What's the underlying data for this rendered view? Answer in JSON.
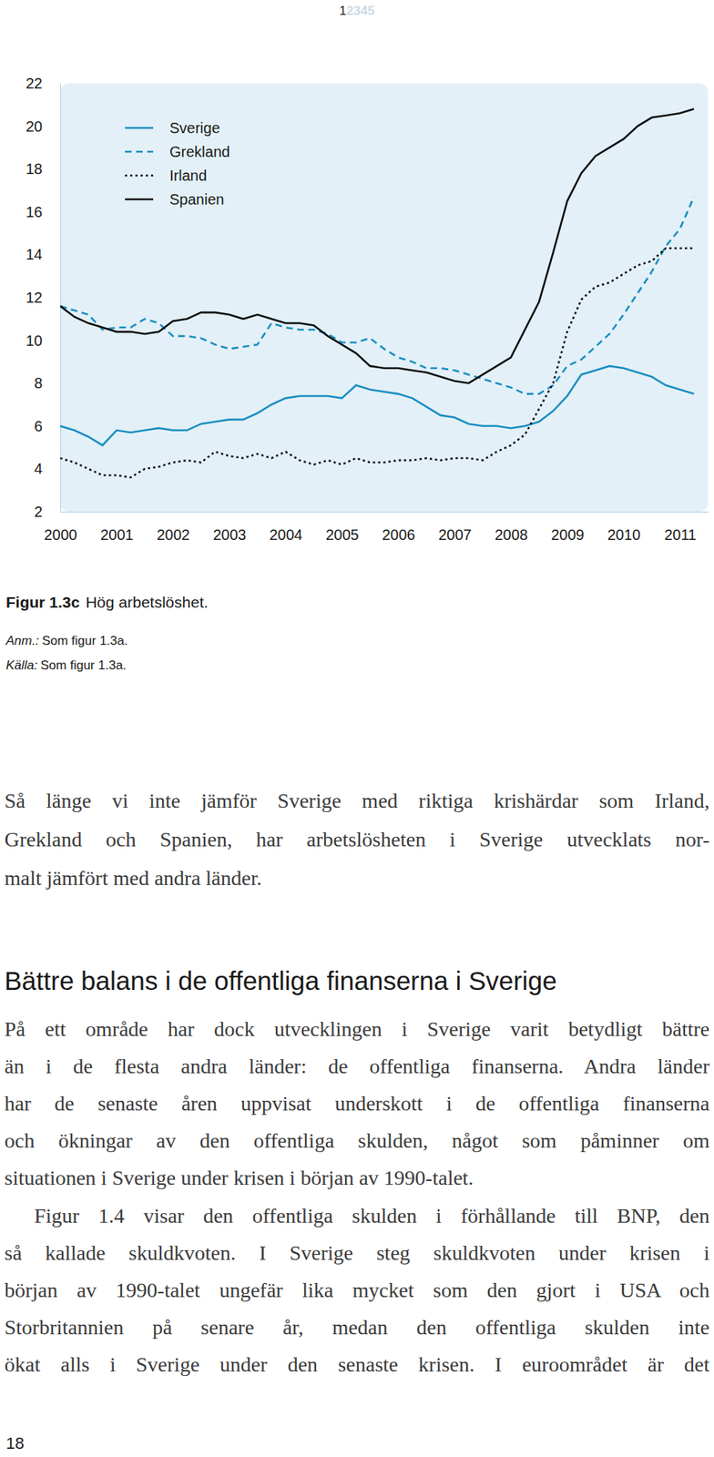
{
  "header": {
    "pages": [
      "1",
      "2",
      "3",
      "4",
      "5"
    ]
  },
  "chart_data": {
    "type": "line",
    "x": [
      2000,
      2000.25,
      2000.5,
      2000.75,
      2001,
      2001.25,
      2001.5,
      2001.75,
      2002,
      2002.25,
      2002.5,
      2002.75,
      2003,
      2003.25,
      2003.5,
      2003.75,
      2004,
      2004.25,
      2004.5,
      2004.75,
      2005,
      2005.25,
      2005.5,
      2005.75,
      2006,
      2006.25,
      2006.5,
      2006.75,
      2007,
      2007.25,
      2007.5,
      2007.75,
      2008,
      2008.25,
      2008.5,
      2008.75,
      2009,
      2009.25,
      2009.5,
      2009.75,
      2010,
      2010.25,
      2010.5,
      2010.75,
      2011,
      2011.25
    ],
    "xlim": [
      2000,
      2011.5
    ],
    "xticks": [
      2000,
      2001,
      2002,
      2003,
      2004,
      2005,
      2006,
      2007,
      2008,
      2009,
      2010,
      2011
    ],
    "ylim": [
      2,
      22
    ],
    "yticks": [
      2,
      4,
      6,
      8,
      10,
      12,
      14,
      16,
      18,
      20,
      22
    ],
    "grid": false,
    "legend": "upper left",
    "series": [
      {
        "name": "Sverige",
        "color": "#1b8ec2",
        "line_style": "solid",
        "values": [
          6.0,
          5.8,
          5.5,
          5.1,
          5.8,
          5.7,
          5.8,
          5.9,
          5.8,
          5.8,
          6.1,
          6.2,
          6.3,
          6.3,
          6.6,
          7.0,
          7.3,
          7.4,
          7.4,
          7.4,
          7.3,
          7.9,
          7.7,
          7.6,
          7.5,
          7.3,
          6.9,
          6.5,
          6.4,
          6.1,
          6.0,
          6.0,
          5.9,
          6.0,
          6.2,
          6.7,
          7.4,
          8.4,
          8.6,
          8.8,
          8.7,
          8.5,
          8.3,
          7.9,
          7.7,
          7.5
        ]
      },
      {
        "name": "Grekland",
        "color": "#1b8ec2",
        "line_style": "dashed",
        "values": [
          11.6,
          11.4,
          11.2,
          10.5,
          10.6,
          10.6,
          11.0,
          10.8,
          10.2,
          10.2,
          10.1,
          9.8,
          9.6,
          9.7,
          9.8,
          10.8,
          10.6,
          10.5,
          10.5,
          10.3,
          9.9,
          9.9,
          10.1,
          9.6,
          9.2,
          9.0,
          8.7,
          8.7,
          8.6,
          8.4,
          8.2,
          8.0,
          7.8,
          7.5,
          7.5,
          7.9,
          8.8,
          9.1,
          9.7,
          10.3,
          11.2,
          12.2,
          13.2,
          14.4,
          15.2,
          16.7
        ]
      },
      {
        "name": "Irland",
        "color": "#111111",
        "line_style": "dotted",
        "values": [
          4.5,
          4.3,
          4.0,
          3.7,
          3.7,
          3.6,
          4.0,
          4.1,
          4.3,
          4.4,
          4.3,
          4.8,
          4.6,
          4.5,
          4.7,
          4.5,
          4.8,
          4.4,
          4.2,
          4.4,
          4.2,
          4.5,
          4.3,
          4.3,
          4.4,
          4.4,
          4.5,
          4.4,
          4.5,
          4.5,
          4.4,
          4.8,
          5.1,
          5.6,
          6.8,
          8.0,
          10.4,
          11.9,
          12.5,
          12.7,
          13.1,
          13.5,
          13.7,
          14.3,
          14.3,
          14.3
        ]
      },
      {
        "name": "Spanien",
        "color": "#111111",
        "line_style": "solid",
        "values": [
          11.6,
          11.1,
          10.8,
          10.6,
          10.4,
          10.4,
          10.3,
          10.4,
          10.9,
          11.0,
          11.3,
          11.3,
          11.2,
          11.0,
          11.2,
          11.0,
          10.8,
          10.8,
          10.7,
          10.2,
          9.8,
          9.4,
          8.8,
          8.7,
          8.7,
          8.6,
          8.5,
          8.3,
          8.1,
          8.0,
          8.4,
          8.8,
          9.2,
          10.5,
          11.8,
          14.1,
          16.5,
          17.8,
          18.6,
          19.0,
          19.4,
          20.0,
          20.4,
          20.5,
          20.6,
          20.8
        ]
      }
    ]
  },
  "caption": {
    "label": "Figur 1.3c",
    "title": "Hög arbetslöshet.",
    "note_label": "Anm.:",
    "note": "Som figur 1.3a.",
    "source_label": "Källa:",
    "source": "Som figur 1.3a."
  },
  "body": [
    {
      "kind": "paragraph",
      "lines": [
        "Så länge vi inte jämför Sverige med riktiga krishärdar som Irland,",
        "Grekland och Spanien, har arbetslösheten i Sverige utvecklats nor-",
        "malt jämfört med andra länder."
      ]
    },
    {
      "kind": "heading",
      "text": "Bättre balans i de offentliga finanserna i Sverige"
    },
    {
      "kind": "paragraph",
      "lines": [
        "På ett område har dock utvecklingen i Sverige varit betydligt bättre",
        "än i de flesta andra länder: de offentliga finanserna. Andra länder",
        "har de senaste åren uppvisat underskott i de offentliga finanserna",
        "och ökningar av den offentliga skulden, något som påminner om",
        "situationen i Sverige under krisen i början av 1990-talet."
      ]
    },
    {
      "kind": "paragraph",
      "indent": true,
      "lines": [
        "Figur 1.4 visar den offentliga skulden i förhållande till BNP, den",
        "så kallade skuldkvoten. I Sverige steg skuldkvoten under krisen i",
        "början av 1990-talet ungefär lika mycket som den gjort i USA och",
        "Storbritannien på senare år, medan den offentliga skulden inte",
        "ökat alls i Sverige under den senaste krisen. I euroområdet är det"
      ]
    }
  ],
  "page_number": "18"
}
